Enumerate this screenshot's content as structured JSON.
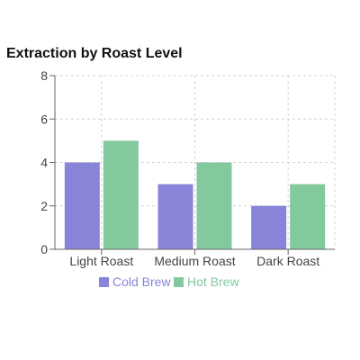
{
  "chart_data": {
    "type": "bar",
    "title": "Extraction by Roast Level",
    "categories": [
      "Light Roast",
      "Medium Roast",
      "Dark Roast"
    ],
    "series": [
      {
        "name": "Cold Brew",
        "values": [
          4,
          3,
          2
        ],
        "color": "#8884d8"
      },
      {
        "name": "Hot Brew",
        "values": [
          5,
          4,
          3
        ],
        "color": "#82ca9d"
      }
    ],
    "xlabel": "",
    "ylabel": "",
    "ylim": [
      0,
      8
    ],
    "yticks": [
      0,
      2,
      4,
      6,
      8
    ],
    "grid": true,
    "legend": "bottom-center"
  }
}
